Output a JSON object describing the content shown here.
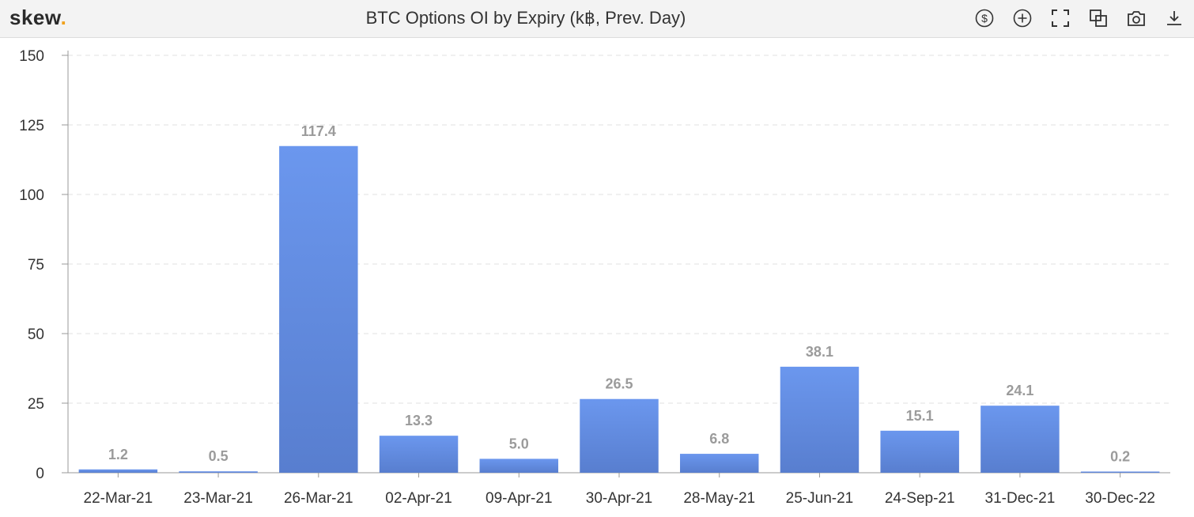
{
  "header": {
    "brand": "skew",
    "brand_dot": ".",
    "title": "BTC Options OI by Expiry (k฿, Prev. Day)"
  },
  "toolbar": {
    "icons": [
      "dollar-circle-icon",
      "plus-circle-icon",
      "fullscreen-icon",
      "copy-icon",
      "camera-icon",
      "download-icon"
    ]
  },
  "colors": {
    "bar_top": "#6b97ee",
    "bar_bottom": "#587ecf",
    "grid": "#e2e2e2",
    "axis": "#999999",
    "label": "#9b9b9b"
  },
  "chart_data": {
    "type": "bar",
    "title": "BTC Options OI by Expiry (k฿, Prev. Day)",
    "categories": [
      "22-Mar-21",
      "23-Mar-21",
      "26-Mar-21",
      "02-Apr-21",
      "09-Apr-21",
      "30-Apr-21",
      "28-May-21",
      "25-Jun-21",
      "24-Sep-21",
      "31-Dec-21",
      "30-Dec-22"
    ],
    "values": [
      1.2,
      0.5,
      117.4,
      13.3,
      5.0,
      26.5,
      6.8,
      38.1,
      15.1,
      24.1,
      0.2
    ],
    "value_labels": [
      "1.2",
      "0.5",
      "117.4",
      "13.3",
      "5.0",
      "26.5",
      "6.8",
      "38.1",
      "15.1",
      "24.1",
      "0.2"
    ],
    "ylim": [
      0,
      150
    ],
    "yticks": [
      0,
      25,
      50,
      75,
      100,
      125,
      150
    ],
    "xlabel": "",
    "ylabel": "",
    "grid": true
  }
}
